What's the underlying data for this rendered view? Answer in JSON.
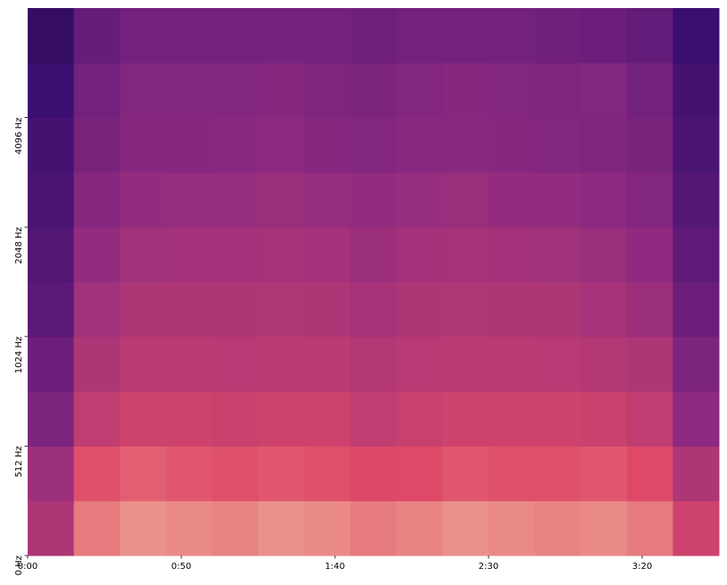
{
  "chart_data": {
    "type": "spectrogram",
    "xlim": [
      0,
      225
    ],
    "xticks": [
      {
        "value": 0,
        "label": "0:00"
      },
      {
        "value": 50,
        "label": "0:50"
      },
      {
        "value": 100,
        "label": "1:40"
      },
      {
        "value": 150,
        "label": "2:30"
      },
      {
        "value": 200,
        "label": "3:20"
      }
    ],
    "ylim": [
      0,
      8192
    ],
    "yscale": "symlog",
    "linthresh": 512,
    "yticks": [
      {
        "value": 0,
        "label": "0 Hz"
      },
      {
        "value": 512,
        "label": "512 Hz"
      },
      {
        "value": 1024,
        "label": "1024 Hz"
      },
      {
        "value": 2048,
        "label": "2048 Hz"
      },
      {
        "value": 4096,
        "label": "4096 Hz"
      }
    ],
    "colormap": "magma",
    "time_edges": [
      0,
      15,
      30,
      45,
      60,
      75,
      90,
      105,
      120,
      135,
      150,
      165,
      180,
      195,
      210,
      225
    ],
    "freq_edges": [
      0,
      256,
      512,
      724,
      1024,
      1448,
      2048,
      2896,
      4096,
      5793,
      8192
    ],
    "z": [
      [
        0.6,
        0.82,
        0.85,
        0.84,
        0.83,
        0.85,
        0.84,
        0.82,
        0.83,
        0.85,
        0.84,
        0.83,
        0.84,
        0.82,
        0.7
      ],
      [
        0.55,
        0.76,
        0.78,
        0.77,
        0.76,
        0.77,
        0.76,
        0.74,
        0.75,
        0.77,
        0.76,
        0.76,
        0.77,
        0.75,
        0.6
      ],
      [
        0.45,
        0.66,
        0.7,
        0.7,
        0.69,
        0.7,
        0.7,
        0.66,
        0.68,
        0.7,
        0.7,
        0.7,
        0.69,
        0.66,
        0.5
      ],
      [
        0.4,
        0.6,
        0.64,
        0.64,
        0.63,
        0.64,
        0.64,
        0.62,
        0.63,
        0.64,
        0.64,
        0.63,
        0.62,
        0.6,
        0.45
      ],
      [
        0.35,
        0.56,
        0.6,
        0.6,
        0.6,
        0.61,
        0.6,
        0.58,
        0.6,
        0.61,
        0.6,
        0.6,
        0.58,
        0.55,
        0.4
      ],
      [
        0.32,
        0.52,
        0.56,
        0.57,
        0.57,
        0.58,
        0.57,
        0.55,
        0.57,
        0.58,
        0.57,
        0.56,
        0.54,
        0.51,
        0.36
      ],
      [
        0.3,
        0.48,
        0.52,
        0.53,
        0.53,
        0.54,
        0.53,
        0.52,
        0.53,
        0.54,
        0.52,
        0.52,
        0.5,
        0.47,
        0.33
      ],
      [
        0.28,
        0.44,
        0.48,
        0.48,
        0.49,
        0.5,
        0.48,
        0.47,
        0.49,
        0.49,
        0.48,
        0.47,
        0.46,
        0.44,
        0.3
      ],
      [
        0.25,
        0.42,
        0.47,
        0.47,
        0.47,
        0.48,
        0.46,
        0.45,
        0.47,
        0.48,
        0.47,
        0.46,
        0.47,
        0.42,
        0.28
      ],
      [
        0.22,
        0.38,
        0.42,
        0.42,
        0.42,
        0.43,
        0.42,
        0.41,
        0.42,
        0.42,
        0.42,
        0.41,
        0.4,
        0.37,
        0.25
      ]
    ]
  }
}
